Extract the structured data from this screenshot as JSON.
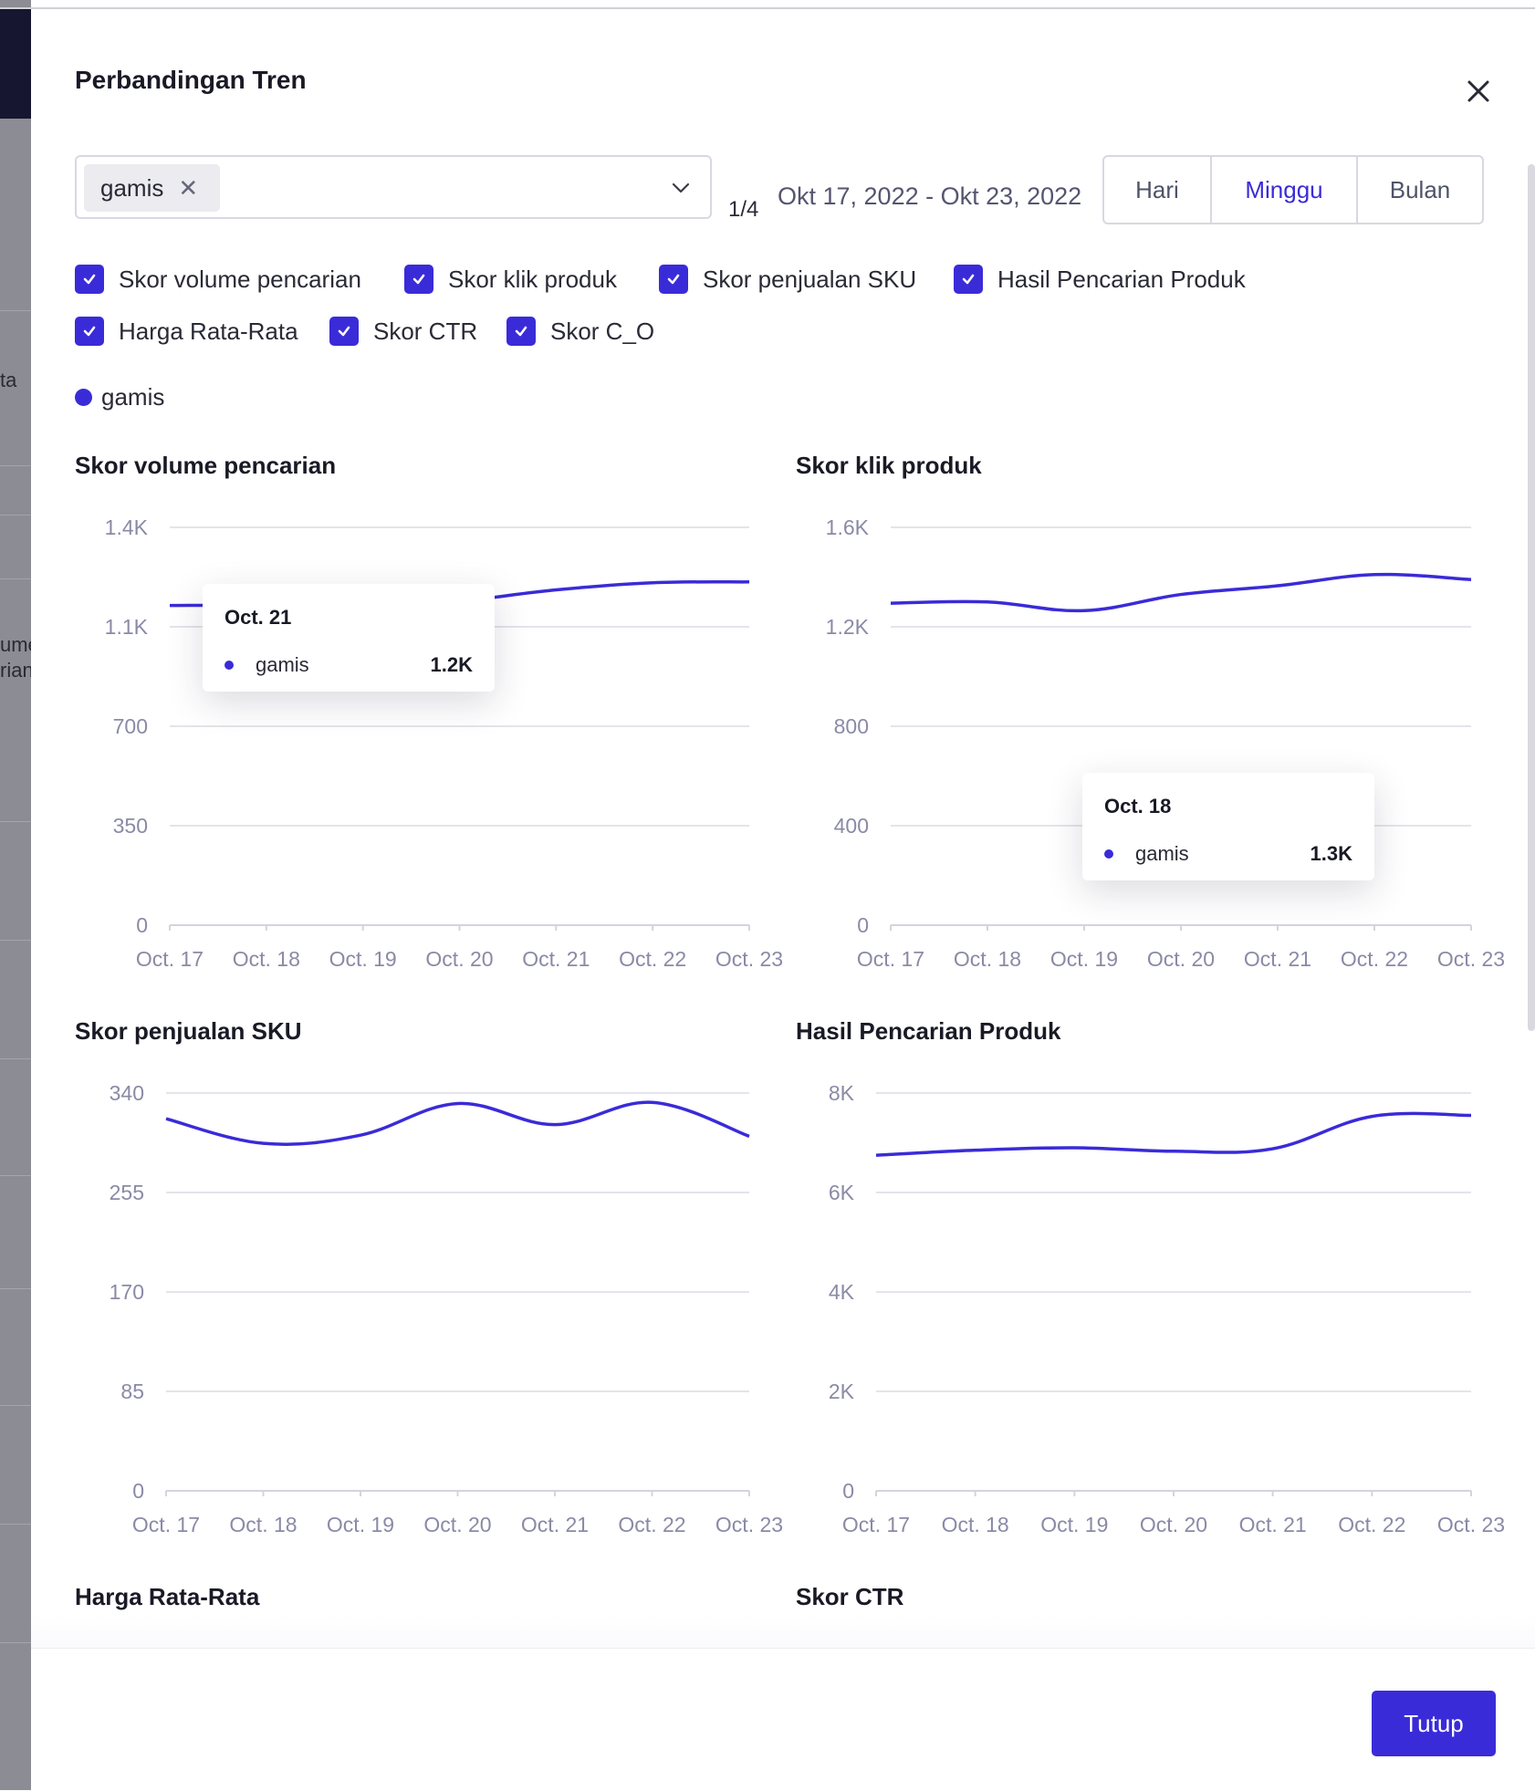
{
  "background": {
    "partial_text_1": "ta",
    "partial_text_2": "ume",
    "partial_text_3": "rian"
  },
  "modal": {
    "title": "Perbandingan Tren",
    "keyword_select": {
      "tag": "gamis"
    },
    "pager": "1/4",
    "date_range": "Okt 17, 2022 - Okt 23, 2022",
    "periods": [
      {
        "label": "Hari",
        "active": false
      },
      {
        "label": "Minggu",
        "active": true
      },
      {
        "label": "Bulan",
        "active": false
      }
    ],
    "metrics": [
      {
        "label": "Skor volume pencarian",
        "checked": true
      },
      {
        "label": "Skor klik produk",
        "checked": true
      },
      {
        "label": "Skor penjualan SKU",
        "checked": true
      },
      {
        "label": "Hasil Pencarian Produk",
        "checked": true
      },
      {
        "label": "Harga Rata-Rata",
        "checked": true
      },
      {
        "label": "Skor CTR",
        "checked": true
      },
      {
        "label": "Skor C_O",
        "checked": true
      }
    ],
    "legend": {
      "label": "gamis"
    },
    "offscreen_chart_titles": [
      "Harga Rata-Rata",
      "Skor CTR"
    ],
    "footer": {
      "close_button": "Tutup"
    }
  },
  "colors": {
    "accent": "#3a2bd8",
    "grid": "#e4e4ea",
    "tick": "#8a8aa6"
  },
  "chart_data": [
    {
      "type": "line",
      "title": "Skor volume pencarian",
      "categories": [
        "Oct. 17",
        "Oct. 18",
        "Oct. 19",
        "Oct. 20",
        "Oct. 21",
        "Oct. 22",
        "Oct. 23"
      ],
      "yticks": [
        "0",
        "350",
        "700",
        "1.1K",
        "1.4K"
      ],
      "ylim": [
        0,
        1400
      ],
      "series": [
        {
          "name": "gamis",
          "values": [
            1125,
            1125,
            1115,
            1140,
            1180,
            1205,
            1208
          ]
        }
      ],
      "tooltip": {
        "label": "Oct. 21",
        "series": "gamis",
        "value": "1.2K"
      }
    },
    {
      "type": "line",
      "title": "Skor klik produk",
      "categories": [
        "Oct. 17",
        "Oct. 18",
        "Oct. 19",
        "Oct. 20",
        "Oct. 21",
        "Oct. 22",
        "Oct. 23"
      ],
      "yticks": [
        "0",
        "400",
        "800",
        "1.2K",
        "1.6K"
      ],
      "ylim": [
        0,
        1600
      ],
      "series": [
        {
          "name": "gamis",
          "values": [
            1295,
            1300,
            1265,
            1330,
            1365,
            1410,
            1390
          ]
        }
      ],
      "tooltip": {
        "label": "Oct. 18",
        "series": "gamis",
        "value": "1.3K"
      }
    },
    {
      "type": "line",
      "title": "Skor penjualan SKU",
      "categories": [
        "Oct. 17",
        "Oct. 18",
        "Oct. 19",
        "Oct. 20",
        "Oct. 21",
        "Oct. 22",
        "Oct. 23"
      ],
      "yticks": [
        "0",
        "85",
        "170",
        "255",
        "340"
      ],
      "ylim": [
        0,
        340
      ],
      "series": [
        {
          "name": "gamis",
          "values": [
            318,
            297,
            304,
            331,
            313,
            332,
            303
          ]
        }
      ]
    },
    {
      "type": "line",
      "title": "Hasil Pencarian Produk",
      "categories": [
        "Oct. 17",
        "Oct. 18",
        "Oct. 19",
        "Oct. 20",
        "Oct. 21",
        "Oct. 22",
        "Oct. 23"
      ],
      "yticks": [
        "0",
        "2K",
        "4K",
        "6K",
        "8K"
      ],
      "ylim": [
        0,
        8000
      ],
      "series": [
        {
          "name": "gamis",
          "values": [
            6750,
            6850,
            6900,
            6830,
            6880,
            7530,
            7550
          ]
        }
      ]
    }
  ]
}
